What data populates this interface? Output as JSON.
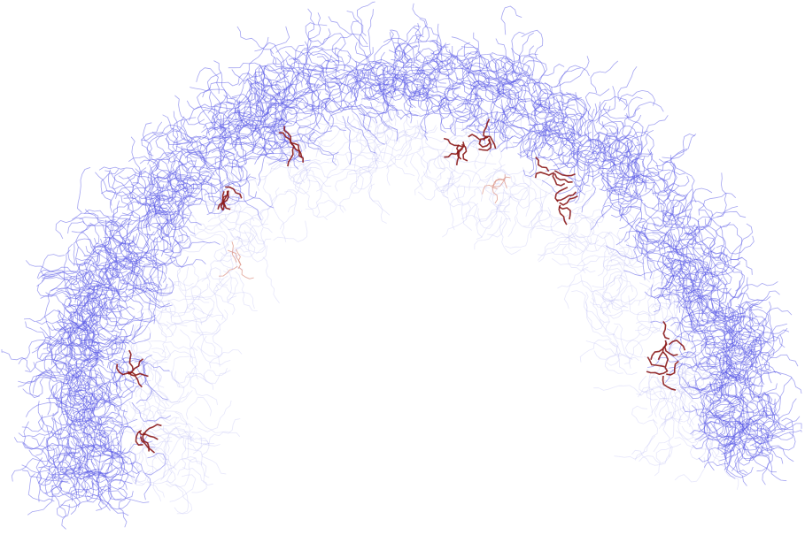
{
  "scene": {
    "subject": "molecular-structure-wireframe",
    "shape": "arch",
    "colors": {
      "background": "#ffffff",
      "backbone": "#5a5ae6",
      "backbone_faint": "#b9b9f3",
      "ligand": "#8b1a1a",
      "ligand_faint": "#d98a7a"
    },
    "ligand_count": 12
  }
}
